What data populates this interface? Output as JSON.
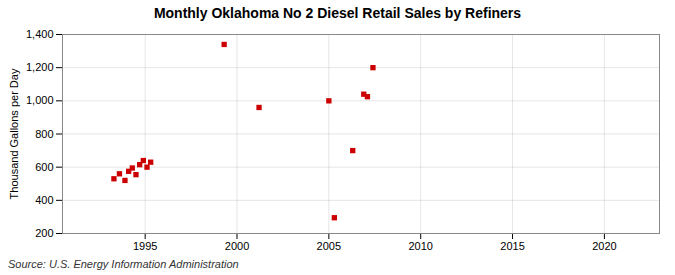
{
  "chart_data": {
    "type": "scatter",
    "title": "Monthly Oklahoma No 2 Diesel Retail Sales by Refiners",
    "ylabel": "Thousand Gallons per Day",
    "source": "Source: U.S. Energy Information Administration",
    "color": "#cc0000",
    "marker": "square",
    "grid": true,
    "x": [
      1993.3,
      1993.6,
      1993.9,
      1994.1,
      1994.3,
      1994.5,
      1994.7,
      1994.9,
      1995.1,
      1995.3,
      1999.3,
      2001.2,
      2005.0,
      2005.3,
      2006.3,
      2006.9,
      2007.1,
      2007.4
    ],
    "values": [
      530,
      560,
      520,
      575,
      595,
      555,
      615,
      640,
      600,
      630,
      1340,
      960,
      1000,
      295,
      700,
      1040,
      1025,
      1200
    ],
    "xlim": [
      1990.5,
      2023
    ],
    "ylim": [
      200,
      1400
    ],
    "xticks": [
      1995,
      2000,
      2005,
      2010,
      2015,
      2020
    ],
    "yticks": [
      200,
      400,
      600,
      800,
      {
        "value": 1000,
        "label": "1,000"
      },
      {
        "value": 1200,
        "label": "1,200"
      },
      {
        "value": 1400,
        "label": "1,400"
      }
    ]
  }
}
